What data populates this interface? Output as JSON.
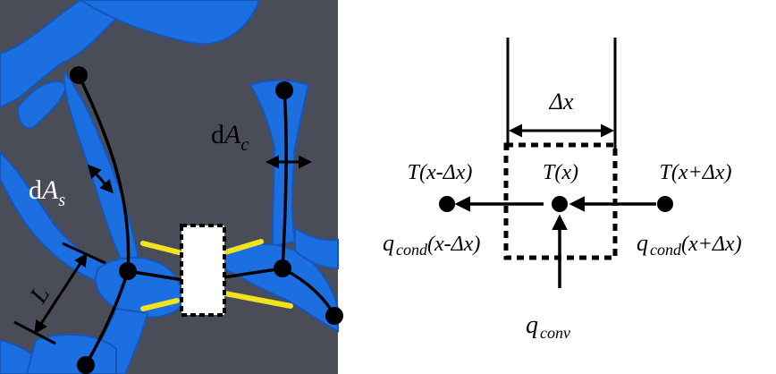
{
  "left_panel": {
    "labels": {
      "dA_s": {
        "prefix": "d",
        "symbol": "A",
        "sub": "s"
      },
      "dA_c": {
        "prefix": "d",
        "symbol": "A",
        "sub": "c"
      },
      "L": "L"
    },
    "colors": {
      "background": "#4a4d58",
      "foam": "#1c6fe0",
      "foam_dark": "#1656b8",
      "yellow": "#f2e41c",
      "line": "#000000"
    }
  },
  "right_panel": {
    "dx_label": "Δx",
    "T_left": "T(x-Δx)",
    "T_center": "T(x)",
    "T_right": "T(x+Δx)",
    "q_left": {
      "q": "q",
      "sub": "cond",
      "arg": "(x-Δx)"
    },
    "q_right": {
      "q": "q",
      "sub": "cond",
      "arg": "(x+Δx)"
    },
    "q_conv": {
      "q": "q",
      "sub": "conv"
    }
  }
}
